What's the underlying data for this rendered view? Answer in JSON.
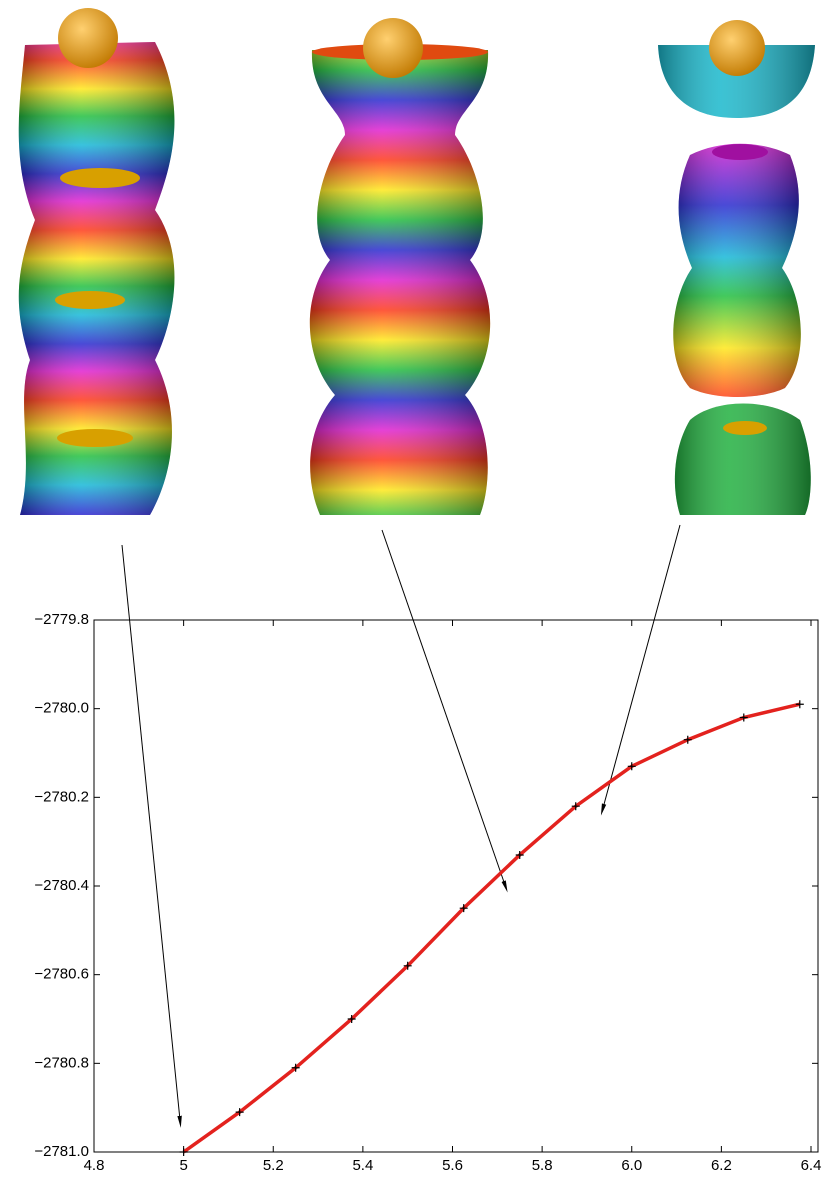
{
  "chart_data": {
    "type": "line",
    "x": [
      5.0,
      5.125,
      5.25,
      5.375,
      5.5,
      5.625,
      5.75,
      5.875,
      6.0,
      6.125,
      6.25,
      6.375
    ],
    "values": [
      -2781.0,
      -2780.91,
      -2780.81,
      -2780.7,
      -2780.58,
      -2780.45,
      -2780.33,
      -2780.22,
      -2780.13,
      -2780.07,
      -2780.02,
      -2779.99
    ],
    "color": "#e3221e",
    "marker": "+",
    "marker_color": "#000000",
    "xlim": [
      4.8,
      6.4
    ],
    "xticks": [
      4.8,
      5,
      5.2,
      5.4,
      5.6,
      5.8,
      {
        "value": 6,
        "label": "6.0"
      },
      6.2,
      6.4
    ],
    "ylim": [
      -2781.0,
      -2779.8
    ],
    "yticks": [
      {
        "value": -2781.0,
        "label": "−2781.0"
      },
      {
        "value": -2780.8,
        "label": "−2780.8"
      },
      {
        "value": -2780.6,
        "label": "−2780.6"
      },
      {
        "value": -2780.4,
        "label": "−2780.4"
      },
      {
        "value": -2780.2,
        "label": "−2780.2"
      },
      {
        "value": -2780.0,
        "label": "−2780.0"
      },
      {
        "value": -2779.8,
        "label": "−2779.8"
      }
    ],
    "grid": false
  }
}
